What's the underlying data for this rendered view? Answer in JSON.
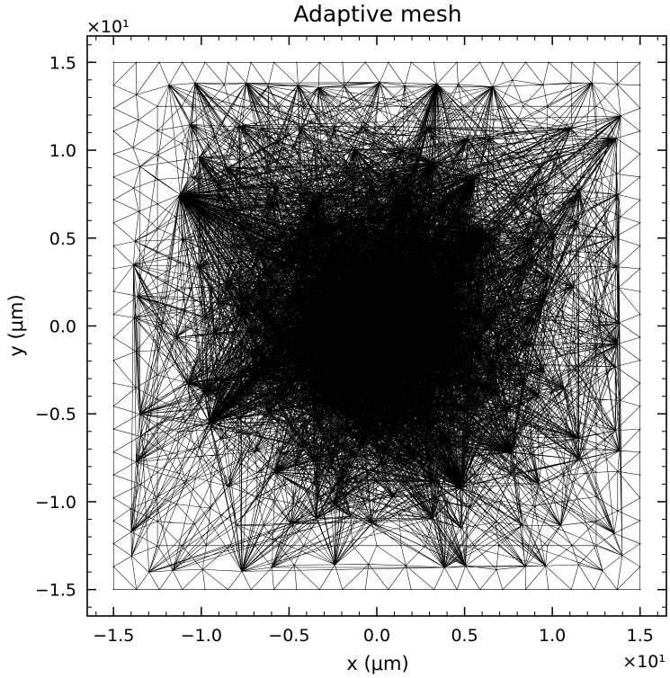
{
  "chart_data": {
    "type": "scatter",
    "subtype": "triangular-mesh",
    "title": "Adaptive mesh",
    "xlabel": "x (μm)",
    "ylabel": "y (μm)",
    "x_offset_label": "×10¹",
    "y_offset_label": "×10¹",
    "xlim": [
      -1.65,
      1.65
    ],
    "ylim": [
      -1.65,
      1.65
    ],
    "xticks": [
      -1.5,
      -1.0,
      -0.5,
      0.0,
      0.5,
      1.0,
      1.5
    ],
    "yticks": [
      -1.5,
      -1.0,
      -0.5,
      0.0,
      0.5,
      1.0,
      1.5
    ],
    "xtick_labels": [
      "−1.5",
      "−1.0",
      "−0.5",
      "0.0",
      "0.5",
      "1.0",
      "1.5"
    ],
    "ytick_labels": [
      "−1.5",
      "−1.0",
      "−0.5",
      "0.0",
      "0.5",
      "1.0",
      "1.5"
    ],
    "mesh": {
      "domain": {
        "xmin": -1.5,
        "xmax": 1.5,
        "ymin": -1.5,
        "ymax": 1.5
      },
      "inner_frame": {
        "xmin": -1.25,
        "xmax": 1.25,
        "ymin": -1.25,
        "ymax": 1.25
      },
      "inclusion": {
        "center_x": -0.06,
        "center_y": -0.02,
        "radius": 0.3
      },
      "coarse_spacing": 0.13,
      "fine_spacing": 0.045,
      "color": "#000000"
    }
  }
}
